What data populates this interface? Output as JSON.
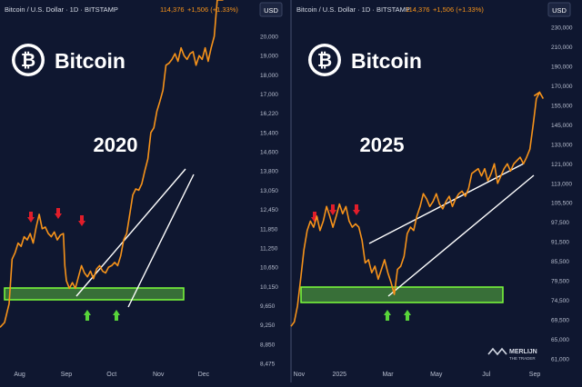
{
  "colors": {
    "background": "#0f1730",
    "price_line": "#f7931a",
    "axis_text": "#b8bfd0",
    "divider": "#2a3350",
    "support_zone_fill": "#3f7f3a",
    "support_zone_border": "#7cff3a",
    "up_arrow": "#58d43a",
    "down_arrow": "#e11d2a",
    "trendline": "#ffffff",
    "change_positive": "#f7931a"
  },
  "chart_data": [
    {
      "type": "line",
      "header": {
        "symbol": "Bitcoin / U.S. Dollar · 1D · BITSTAMP",
        "price": "114,376",
        "change": "+1,506 (+1.33%)",
        "currency": "USD"
      },
      "brand": {
        "logo_glyph": "₿",
        "name": "Bitcoin"
      },
      "year_label": "2020",
      "x_ticks": [
        "Aug",
        "Sep",
        "Oct",
        "Nov",
        "Dec"
      ],
      "x_range_days": [
        0,
        170
      ],
      "x_tick_days": [
        13,
        44,
        74,
        105,
        135
      ],
      "y_ticks": [
        "20,000",
        "19,000",
        "18,000",
        "17,000",
        "16,220",
        "15,400",
        "14,600",
        "13,800",
        "13,050",
        "12,450",
        "11,850",
        "11,250",
        "10,650",
        "10,150",
        "9,650",
        "9,250",
        "8,850",
        "8,475"
      ],
      "y_scale": "nonlinear",
      "series": [
        {
          "x": [
            0,
            3,
            6,
            8,
            10,
            12,
            14,
            16,
            18,
            20,
            22,
            24,
            26,
            28,
            30,
            32,
            34,
            36,
            38,
            40,
            42,
            43,
            44,
            46,
            48,
            50,
            52,
            54,
            56,
            58,
            60,
            62,
            64,
            66,
            68,
            70,
            72,
            74,
            76,
            78,
            80,
            82,
            84,
            86,
            88,
            90,
            92,
            94,
            96,
            98,
            100,
            102,
            104,
            106,
            108,
            110,
            112,
            114,
            116,
            118,
            120,
            122,
            124,
            126,
            128,
            130,
            132,
            134,
            136,
            138,
            140,
            142,
            144,
            146,
            148
          ],
          "y": [
            9200,
            9300,
            9700,
            10900,
            11100,
            11400,
            11300,
            11600,
            11500,
            11700,
            11400,
            11900,
            12300,
            11850,
            11900,
            11700,
            11600,
            11750,
            11500,
            11650,
            11700,
            10700,
            10300,
            10100,
            10250,
            10100,
            10400,
            10700,
            10500,
            10400,
            10550,
            10350,
            10600,
            10700,
            10550,
            10500,
            10650,
            10700,
            10800,
            10700,
            11000,
            11500,
            11700,
            12300,
            12900,
            13100,
            13050,
            13300,
            13800,
            14300,
            15400,
            15600,
            16300,
            16700,
            17200,
            18500,
            18600,
            18800,
            19100,
            18700,
            19400,
            19000,
            18800,
            19100,
            19200,
            18500,
            19000,
            18800,
            19400,
            18700,
            19400,
            20000,
            22500,
            23000,
            23500
          ]
        }
      ],
      "annotations": {
        "red_arrows": 3,
        "green_arrows": 2,
        "support_zone": [
          9950,
          10300
        ],
        "channel_lines": 2
      }
    },
    {
      "type": "line",
      "header": {
        "symbol": "Bitcoin / U.S. Dollar · 1D · BITSTAMP",
        "price": "114,376",
        "change": "+1,506 (+1.33%)",
        "currency": "USD"
      },
      "brand": {
        "logo_glyph": "₿",
        "name": "Bitcoin"
      },
      "year_label": "2025",
      "x_ticks": [
        "Nov",
        "2025",
        "Mar",
        "May",
        "Jul",
        "Sep"
      ],
      "x_range_days": [
        0,
        320
      ],
      "x_tick_days": [
        10,
        60,
        120,
        180,
        242,
        302
      ],
      "y_ticks": [
        "230,000",
        "210,000",
        "190,000",
        "170,000",
        "155,000",
        "145,000",
        "133,000",
        "121,000",
        "113,000",
        "105,500",
        "97,500",
        "91,500",
        "85,500",
        "79,500",
        "74,500",
        "69,500",
        "65,000",
        "61,000"
      ],
      "y_scale": "nonlinear",
      "series": [
        {
          "x": [
            0,
            4,
            8,
            12,
            16,
            20,
            24,
            28,
            32,
            36,
            40,
            44,
            48,
            52,
            56,
            60,
            64,
            68,
            72,
            76,
            80,
            84,
            88,
            92,
            96,
            100,
            104,
            108,
            112,
            116,
            120,
            124,
            128,
            132,
            136,
            140,
            144,
            148,
            152,
            156,
            160,
            164,
            168,
            172,
            176,
            180,
            184,
            188,
            192,
            196,
            200,
            204,
            208,
            212,
            216,
            220,
            224,
            228,
            232,
            236,
            240,
            244,
            248,
            252,
            256,
            260,
            264,
            268,
            272,
            276,
            280,
            284,
            288,
            292,
            296,
            300,
            304,
            308
          ],
          "y": [
            68000,
            69000,
            73000,
            80000,
            89000,
            95000,
            98000,
            96000,
            100000,
            95000,
            98000,
            104000,
            100000,
            96000,
            100000,
            105000,
            101000,
            104000,
            98000,
            96000,
            97000,
            96000,
            92000,
            85000,
            86000,
            82000,
            84000,
            80000,
            83000,
            86000,
            82000,
            79000,
            76000,
            83000,
            84000,
            87000,
            94000,
            96000,
            95000,
            100000,
            104000,
            109000,
            107000,
            104000,
            106000,
            109000,
            105000,
            103000,
            106000,
            108000,
            104000,
            107000,
            109000,
            110000,
            108000,
            111000,
            117000,
            118000,
            119000,
            116000,
            119000,
            114000,
            117000,
            121000,
            113000,
            116000,
            119000,
            121000,
            118000,
            121000,
            123000,
            125000,
            121000,
            125000,
            130000,
            145000,
            160000,
            165000
          ]
        }
      ],
      "annotations": {
        "red_arrows": 3,
        "green_arrows": 2,
        "support_zone": [
          77000,
          82500
        ],
        "rising_wedge_lines": 2
      }
    }
  ],
  "watermark": {
    "line1": "MERLIJN",
    "line2": "THE TRADER"
  }
}
